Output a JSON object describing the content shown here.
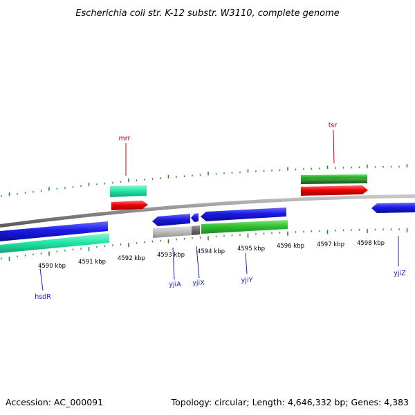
{
  "title": "Escherichia coli str. K-12 substr. W3110, complete genome",
  "footer": {
    "accession": "Accession: AC_000091",
    "info": "Topology: circular; Length: 4,646,332 bp; Genes: 4,383"
  },
  "colors": {
    "backbone": "#8c8c8c",
    "tick": "#228b22",
    "gene_blue": "#1a1acc",
    "gene_red": "#e60000",
    "gene_green": "#33bb33",
    "gene_teal": "#22e8a8",
    "gene_grey": "#bbbbbb",
    "label_red": "#cc0000",
    "label_blue": "#1a1acc"
  },
  "axis": {
    "tick_labels": [
      "4590 kbp",
      "4591 kbp",
      "4592 kbp",
      "4593 kbp",
      "4594 kbp",
      "4595 kbp",
      "4596 kbp",
      "4597 kbp",
      "4598 kbp"
    ]
  },
  "upper_labels": [
    "mrr",
    "tsr"
  ],
  "lower_labels": [
    "hsdR",
    "yjiA",
    "yjiX",
    "yjiY",
    "yjiZ"
  ]
}
